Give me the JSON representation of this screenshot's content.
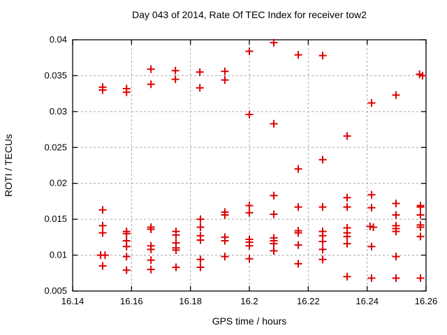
{
  "chart_data": {
    "type": "scatter",
    "title": "Day 043 of 2014, Rate Of TEC Index for receiver tow2",
    "xlabel": "GPS time / hours",
    "ylabel": "ROTI / TECUs",
    "xlim": [
      16.14,
      16.26
    ],
    "ylim": [
      0.005,
      0.04
    ],
    "xticks": [
      16.14,
      16.16,
      16.18,
      16.2,
      16.22,
      16.24,
      16.26
    ],
    "xtick_labels": [
      "16.14",
      "16.16",
      "16.18",
      "16.2",
      "16.22",
      "16.24",
      "16.26"
    ],
    "yticks": [
      0.005,
      0.01,
      0.015,
      0.02,
      0.025,
      0.03,
      0.035,
      0.04
    ],
    "ytick_labels": [
      "0.005",
      "0.01",
      "0.015",
      "0.02",
      "0.025",
      "0.03",
      "0.035",
      "0.04"
    ],
    "grid": true,
    "legend": false,
    "marker": {
      "shape": "plus",
      "color": "#dd0000",
      "size": 11,
      "stroke_width": 2
    },
    "grid_color": "#a6a6a6",
    "frame_color": "#000000",
    "series": [
      {
        "name": "ROTI",
        "points": [
          [
            16.1495,
            0.01
          ],
          [
            16.1502,
            0.0334
          ],
          [
            16.1502,
            0.033
          ],
          [
            16.1502,
            0.0163
          ],
          [
            16.1502,
            0.0141
          ],
          [
            16.1502,
            0.0131
          ],
          [
            16.151,
            0.01
          ],
          [
            16.1502,
            0.0085
          ],
          [
            16.1583,
            0.0332
          ],
          [
            16.1583,
            0.0327
          ],
          [
            16.1583,
            0.0133
          ],
          [
            16.1583,
            0.013
          ],
          [
            16.1583,
            0.012
          ],
          [
            16.1583,
            0.0112
          ],
          [
            16.1583,
            0.0098
          ],
          [
            16.1583,
            0.0079
          ],
          [
            16.1666,
            0.0359
          ],
          [
            16.1666,
            0.0338
          ],
          [
            16.1666,
            0.0139
          ],
          [
            16.1666,
            0.0136
          ],
          [
            16.1666,
            0.0113
          ],
          [
            16.1666,
            0.0108
          ],
          [
            16.1666,
            0.0093
          ],
          [
            16.1666,
            0.008
          ],
          [
            16.1749,
            0.0357
          ],
          [
            16.1749,
            0.0345
          ],
          [
            16.1751,
            0.0133
          ],
          [
            16.1751,
            0.0128
          ],
          [
            16.1751,
            0.0117
          ],
          [
            16.1751,
            0.011
          ],
          [
            16.1751,
            0.0107
          ],
          [
            16.1751,
            0.0083
          ],
          [
            16.1832,
            0.0355
          ],
          [
            16.1832,
            0.0333
          ],
          [
            16.1834,
            0.015
          ],
          [
            16.1834,
            0.0139
          ],
          [
            16.1834,
            0.0127
          ],
          [
            16.1834,
            0.0121
          ],
          [
            16.1834,
            0.0094
          ],
          [
            16.1834,
            0.0083
          ],
          [
            16.1917,
            0.0356
          ],
          [
            16.1917,
            0.0344
          ],
          [
            16.1917,
            0.016
          ],
          [
            16.1917,
            0.0156
          ],
          [
            16.1917,
            0.0125
          ],
          [
            16.1917,
            0.012
          ],
          [
            16.1917,
            0.0098
          ],
          [
            16.2,
            0.0384
          ],
          [
            16.2,
            0.0296
          ],
          [
            16.2,
            0.0169
          ],
          [
            16.2,
            0.0159
          ],
          [
            16.2,
            0.0122
          ],
          [
            16.2,
            0.0118
          ],
          [
            16.2,
            0.0113
          ],
          [
            16.2,
            0.0095
          ],
          [
            16.2083,
            0.0396
          ],
          [
            16.2083,
            0.0283
          ],
          [
            16.2083,
            0.0183
          ],
          [
            16.2083,
            0.0157
          ],
          [
            16.2083,
            0.0124
          ],
          [
            16.2083,
            0.012
          ],
          [
            16.2083,
            0.0116
          ],
          [
            16.2083,
            0.0106
          ],
          [
            16.2166,
            0.0379
          ],
          [
            16.2166,
            0.022
          ],
          [
            16.2166,
            0.0167
          ],
          [
            16.2166,
            0.0134
          ],
          [
            16.2166,
            0.0131
          ],
          [
            16.2166,
            0.0114
          ],
          [
            16.2166,
            0.0088
          ],
          [
            16.2249,
            0.0378
          ],
          [
            16.2249,
            0.0233
          ],
          [
            16.2249,
            0.0167
          ],
          [
            16.2249,
            0.0133
          ],
          [
            16.2249,
            0.0127
          ],
          [
            16.2249,
            0.0119
          ],
          [
            16.2249,
            0.0108
          ],
          [
            16.2249,
            0.0094
          ],
          [
            16.2332,
            0.0266
          ],
          [
            16.2332,
            0.018
          ],
          [
            16.2332,
            0.0167
          ],
          [
            16.2332,
            0.0138
          ],
          [
            16.2332,
            0.0131
          ],
          [
            16.2332,
            0.0126
          ],
          [
            16.2332,
            0.0116
          ],
          [
            16.2332,
            0.007
          ],
          [
            16.2415,
            0.0312
          ],
          [
            16.2415,
            0.0184
          ],
          [
            16.2415,
            0.0166
          ],
          [
            16.241,
            0.014
          ],
          [
            16.2421,
            0.0139
          ],
          [
            16.2415,
            0.0112
          ],
          [
            16.2415,
            0.0068
          ],
          [
            16.2498,
            0.0323
          ],
          [
            16.2498,
            0.0172
          ],
          [
            16.2498,
            0.0156
          ],
          [
            16.2498,
            0.0141
          ],
          [
            16.2498,
            0.0137
          ],
          [
            16.2498,
            0.0133
          ],
          [
            16.2498,
            0.0098
          ],
          [
            16.2498,
            0.0068
          ],
          [
            16.2578,
            0.0352
          ],
          [
            16.2588,
            0.035
          ],
          [
            16.2581,
            0.0169
          ],
          [
            16.2581,
            0.0167
          ],
          [
            16.2581,
            0.0156
          ],
          [
            16.2581,
            0.0142
          ],
          [
            16.2581,
            0.0139
          ],
          [
            16.2581,
            0.0126
          ],
          [
            16.2581,
            0.0068
          ]
        ]
      }
    ]
  }
}
